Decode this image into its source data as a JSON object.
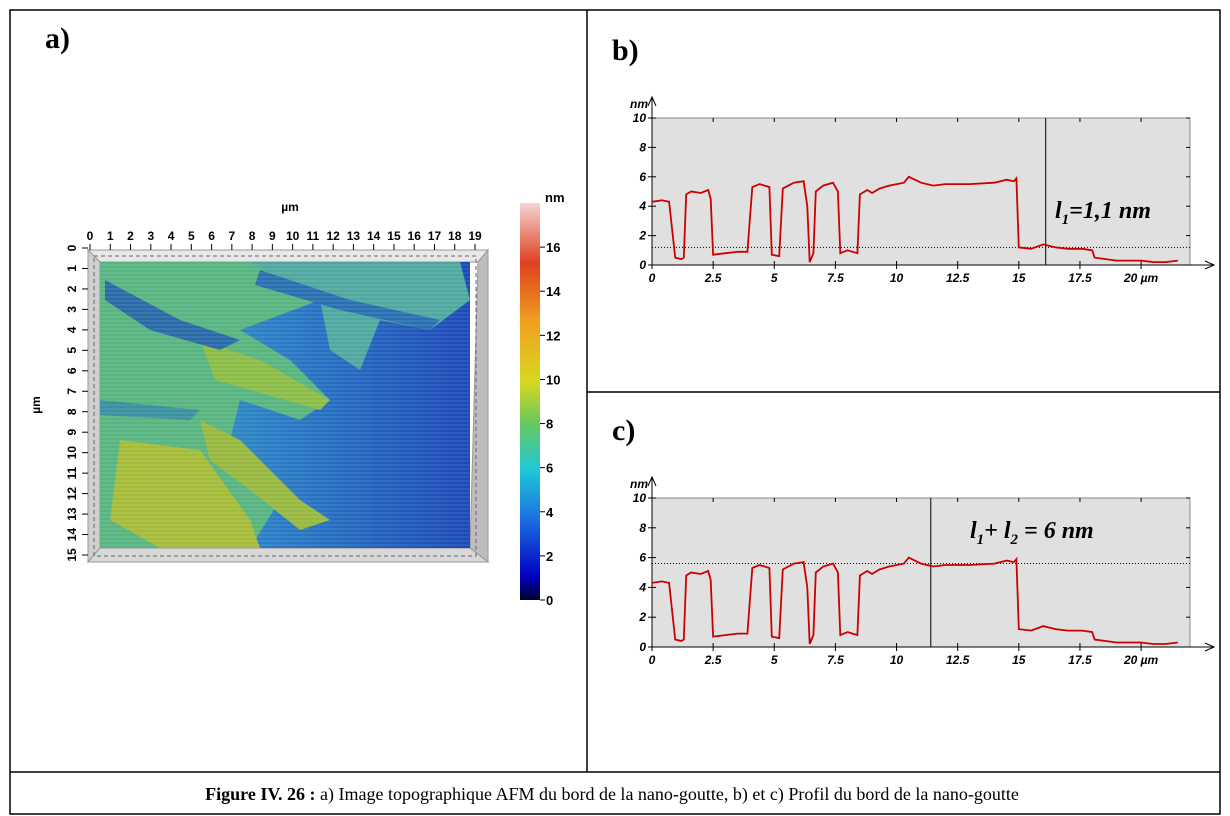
{
  "chart_data": [
    {
      "type": "surface",
      "panel_label": "a)",
      "xlabel": "µm",
      "ylabel": "µm",
      "xlim": [
        0,
        19
      ],
      "xticks": [
        0,
        1,
        2,
        3,
        4,
        5,
        6,
        7,
        8,
        9,
        10,
        11,
        12,
        13,
        14,
        15,
        16,
        17,
        18,
        19
      ],
      "ylim": [
        0,
        15
      ],
      "yticks": [
        0,
        1,
        2,
        3,
        4,
        5,
        6,
        7,
        8,
        9,
        10,
        11,
        12,
        13,
        14,
        15
      ],
      "colorbar": {
        "label": "nm",
        "lim": [
          0,
          18
        ],
        "ticks": [
          0,
          2,
          4,
          6,
          8,
          10,
          12,
          14,
          16
        ]
      }
    },
    {
      "type": "line",
      "panel_label": "b)",
      "ylabel": "nm",
      "color": "#cc0000",
      "xlim": [
        0,
        22
      ],
      "xticks": [
        0,
        2.5,
        5,
        7.5,
        10,
        12.5,
        15,
        17.5,
        {
          "value": 20,
          "label": "20 µm"
        }
      ],
      "ylim": [
        0,
        10
      ],
      "yticks": [
        0,
        2,
        4,
        6,
        8,
        10
      ],
      "hline": 1.2,
      "vline": 16.1,
      "annotation": [
        "l",
        "1",
        "=1,1 nm"
      ],
      "x": [
        0,
        0.4,
        0.7,
        0.85,
        0.95,
        1.2,
        1.3,
        1.4,
        1.6,
        2.0,
        2.3,
        2.4,
        2.5,
        3.0,
        3.5,
        3.9,
        4.1,
        4.4,
        4.8,
        4.9,
        5.2,
        5.35,
        5.8,
        6.2,
        6.35,
        6.45,
        6.6,
        6.7,
        7.0,
        7.4,
        7.6,
        7.7,
        8.0,
        8.2,
        8.4,
        8.5,
        8.8,
        9.0,
        9.3,
        9.7,
        10.3,
        10.5,
        11.0,
        11.5,
        12.0,
        13.0,
        14.0,
        14.5,
        14.8,
        14.9,
        15.0,
        15.5,
        16.0,
        16.5,
        17.0,
        17.6,
        18.0,
        18.1,
        19.0,
        20.0,
        20.5,
        21.0,
        21.5
      ],
      "values": [
        4.3,
        4.4,
        4.3,
        2,
        0.5,
        0.4,
        0.5,
        4.8,
        5.0,
        4.9,
        5.1,
        4.5,
        0.7,
        0.8,
        0.9,
        0.9,
        5.3,
        5.5,
        5.3,
        0.7,
        0.6,
        5.2,
        5.6,
        5.7,
        4.0,
        0.2,
        0.8,
        5.0,
        5.4,
        5.6,
        5.0,
        0.8,
        1.0,
        0.9,
        0.8,
        4.8,
        5.1,
        4.9,
        5.2,
        5.4,
        5.6,
        6.0,
        5.6,
        5.4,
        5.5,
        5.5,
        5.6,
        5.8,
        5.7,
        5.9,
        1.2,
        1.1,
        1.4,
        1.2,
        1.1,
        1.1,
        1.0,
        0.5,
        0.3,
        0.3,
        0.2,
        0.2,
        0.3
      ]
    },
    {
      "type": "line",
      "panel_label": "c)",
      "ylabel": "nm",
      "color": "#cc0000",
      "xlim": [
        0,
        22
      ],
      "xticks": [
        0,
        2.5,
        5,
        7.5,
        10,
        12.5,
        15,
        17.5,
        {
          "value": 20,
          "label": "20 µm"
        }
      ],
      "ylim": [
        0,
        10
      ],
      "yticks": [
        0,
        2,
        4,
        6,
        8,
        10
      ],
      "hline": 5.6,
      "vline": 11.4,
      "annotation": [
        "l",
        "1",
        "+ l",
        "2",
        " = 6 nm"
      ],
      "x": [
        0,
        0.4,
        0.7,
        0.85,
        0.95,
        1.2,
        1.3,
        1.4,
        1.6,
        2.0,
        2.3,
        2.4,
        2.5,
        3.0,
        3.5,
        3.9,
        4.1,
        4.4,
        4.8,
        4.9,
        5.2,
        5.35,
        5.8,
        6.2,
        6.35,
        6.45,
        6.6,
        6.7,
        7.0,
        7.4,
        7.6,
        7.7,
        8.0,
        8.2,
        8.4,
        8.5,
        8.8,
        9.0,
        9.3,
        9.7,
        10.3,
        10.5,
        11.0,
        11.5,
        12.0,
        13.0,
        14.0,
        14.5,
        14.8,
        14.9,
        15.0,
        15.5,
        16.0,
        16.5,
        17.0,
        17.6,
        18.0,
        18.1,
        19.0,
        20.0,
        20.5,
        21.0,
        21.5
      ],
      "values": [
        4.3,
        4.4,
        4.3,
        2,
        0.5,
        0.4,
        0.5,
        4.8,
        5.0,
        4.9,
        5.1,
        4.5,
        0.7,
        0.8,
        0.9,
        0.9,
        5.3,
        5.5,
        5.3,
        0.7,
        0.6,
        5.2,
        5.6,
        5.7,
        4.0,
        0.2,
        0.8,
        5.0,
        5.4,
        5.6,
        5.0,
        0.8,
        1.0,
        0.9,
        0.8,
        4.8,
        5.1,
        4.9,
        5.2,
        5.4,
        5.6,
        6.0,
        5.6,
        5.4,
        5.5,
        5.5,
        5.6,
        5.8,
        5.7,
        5.9,
        1.2,
        1.1,
        1.4,
        1.2,
        1.1,
        1.1,
        1.0,
        0.5,
        0.3,
        0.3,
        0.2,
        0.2,
        0.3
      ]
    }
  ],
  "caption": {
    "label": "Figure IV. 26 :",
    "text": " a) Image topographique AFM du bord de la nano-goutte, b) et c) Profil du bord  de la nano-goutte"
  }
}
